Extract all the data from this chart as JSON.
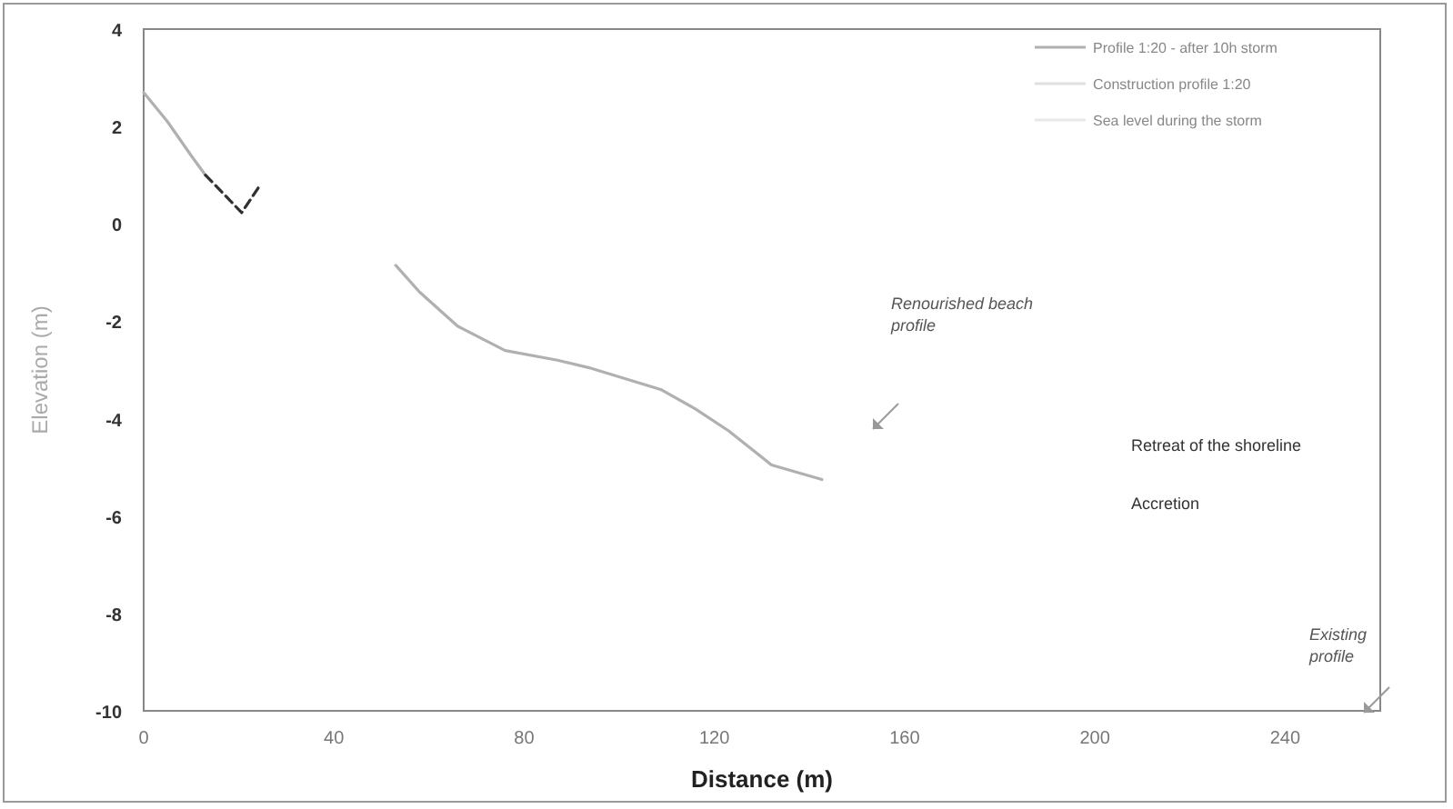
{
  "chart_data": {
    "type": "line",
    "xlabel": "Distance (m)",
    "ylabel": "Elevation (m)",
    "xlim": [
      0,
      260
    ],
    "xticks": [
      0,
      40,
      80,
      120,
      160,
      200,
      240
    ],
    "ylim": [
      -10,
      4
    ],
    "yticks": [
      4,
      2,
      0,
      -2,
      -4,
      -6,
      -8,
      -10
    ],
    "grid": false,
    "legend": "top right",
    "series": [
      {
        "name": "Profile 1:20 - after 10h storm",
        "color": "#b0b0b0",
        "line_style": "solid",
        "x": [
          0,
          5,
          10,
          13,
          24.5,
          53,
          58,
          66,
          76,
          87,
          93.5,
          108.7,
          116,
          123,
          132,
          142.6
        ],
        "values": [
          2.7,
          2.1,
          1.4,
          1.0,
          null,
          -0.85,
          -1.4,
          -2.1,
          -2.6,
          -2.8,
          -2.95,
          -3.4,
          -3.8,
          -4.25,
          -4.95,
          -5.25
        ]
      },
      {
        "color": "#303030",
        "line_style": "dashed",
        "x": [
          13,
          16,
          20.6,
          24.5
        ],
        "values": [
          1.0,
          0.7,
          0.23,
          0.8
        ]
      },
      {
        "name": "Construction profile 1:20",
        "color": "#e0e0e0"
      },
      {
        "name": "Sea level during the storm",
        "color": "#e8e8e8"
      }
    ],
    "annotations": [
      "Renourished beach profile",
      "Existing profile",
      "Retreat of the shoreline",
      "Accretion"
    ]
  }
}
